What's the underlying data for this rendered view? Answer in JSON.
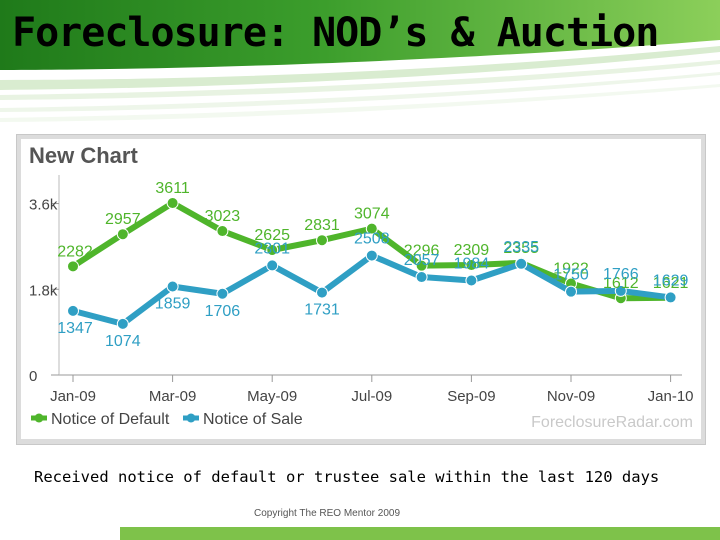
{
  "slide": {
    "title": "Foreclosure: NOD’s & Auction",
    "caption": "Received notice of default or trustee sale within the last 120 days",
    "copyright": "Copyright The REO Mentor 2009"
  },
  "colors": {
    "default_series": "#4fb52b",
    "sale_series": "#2f9fc4",
    "banner_green": "#2f8f21",
    "bottom_bar": "#7ec24a"
  },
  "chart_data": {
    "type": "line",
    "title": "New Chart",
    "watermark": "ForeclosureRadar.com",
    "x": [
      "Jan-09",
      "Feb-09",
      "Mar-09",
      "Apr-09",
      "May-09",
      "Jun-09",
      "Jul-09",
      "Aug-09",
      "Sep-09",
      "Oct-09",
      "Nov-09",
      "Dec-09",
      "Jan-10"
    ],
    "x_tick_labels": [
      "Jan-09",
      "Mar-09",
      "May-09",
      "Jul-09",
      "Sep-09",
      "Nov-09",
      "Jan-10"
    ],
    "y_tick_labels": [
      "3.6k",
      "1.8k",
      "0"
    ],
    "y_ticks": [
      3600,
      1800,
      0
    ],
    "ylim": [
      0,
      4200
    ],
    "legend": "bottom-left",
    "grid": false,
    "series": [
      {
        "name": "Notice of Default",
        "values": [
          2282,
          2957,
          3611,
          3023,
          2625,
          2831,
          3074,
          2296,
          2309,
          2355,
          1922,
          1612,
          1621
        ],
        "label_text": [
          "2282",
          "2957",
          "3611",
          "3023",
          "2625",
          "2831",
          "3074",
          "2296",
          "2309",
          "2355",
          "1922",
          "1612",
          "1621"
        ]
      },
      {
        "name": "Notice of Sale",
        "values": [
          1347,
          1074,
          1859,
          1706,
          2301,
          1731,
          2508,
          2057,
          1984,
          2335,
          1750,
          1766,
          1629
        ],
        "label_text": [
          "1347",
          "1074",
          "1859",
          "1706",
          "2301",
          "1731",
          "2508",
          "2057",
          "1984",
          "2335",
          "1750",
          "1766",
          "1629"
        ]
      }
    ]
  }
}
